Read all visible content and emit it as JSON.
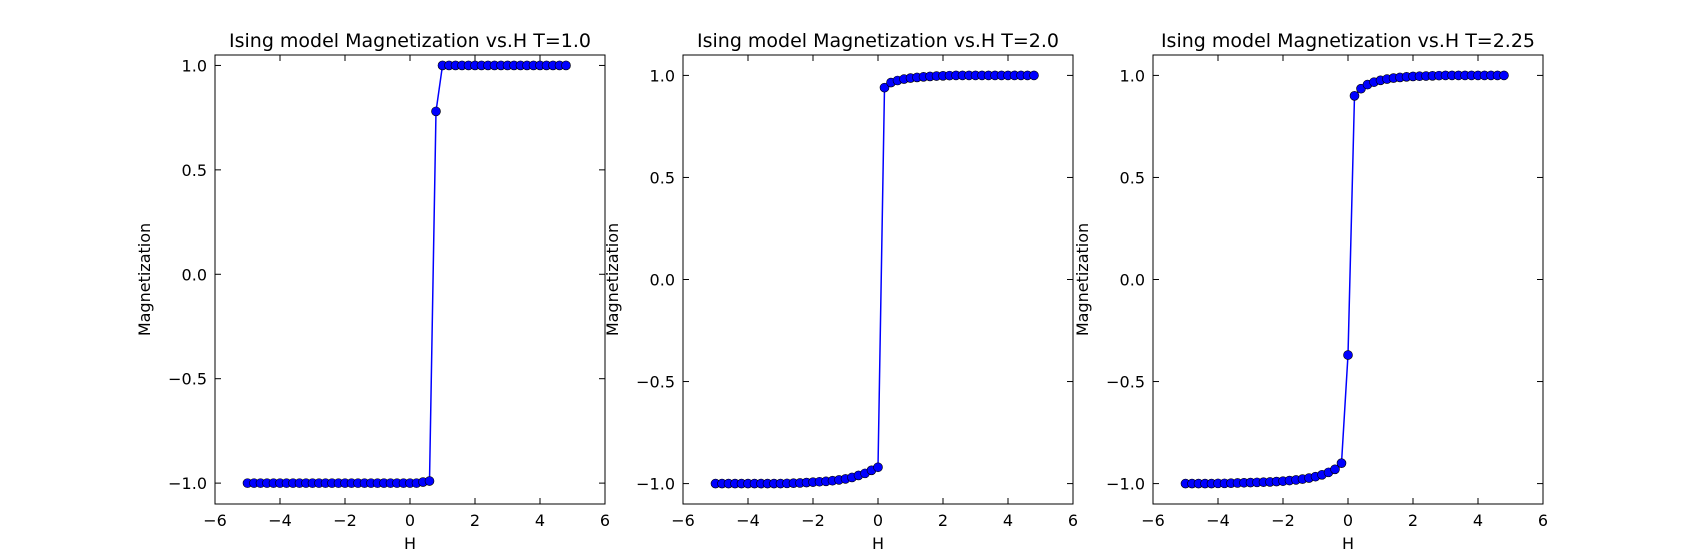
{
  "chart_data": [
    {
      "type": "line",
      "title": "Ising model Magnetization vs.H T=1.0",
      "xlabel": "H",
      "ylabel": "Magnetization",
      "xlim": [
        -6,
        6
      ],
      "ylim": [
        -1.1,
        1.05
      ],
      "xticks": [
        -6,
        -4,
        -2,
        0,
        2,
        4,
        6
      ],
      "xtick_labels": [
        "−6",
        "−4",
        "−2",
        "0",
        "2",
        "4",
        "6"
      ],
      "yticks": [
        1.0,
        0.5,
        0.0,
        -0.5,
        -1.0
      ],
      "ytick_labels": [
        "1.0",
        "0.5",
        "0.0",
        "−0.5",
        "−1.0"
      ],
      "grid": false,
      "series": [
        {
          "color": "#0000ff",
          "marker": "circle",
          "points": [
            [
              -5.0,
              -1.0
            ],
            [
              -4.8,
              -1.0
            ],
            [
              -4.6,
              -1.0
            ],
            [
              -4.4,
              -1.0
            ],
            [
              -4.2,
              -1.0
            ],
            [
              -4.0,
              -1.0
            ],
            [
              -3.8,
              -1.0
            ],
            [
              -3.6,
              -1.0
            ],
            [
              -3.4,
              -1.0
            ],
            [
              -3.2,
              -1.0
            ],
            [
              -3.0,
              -1.0
            ],
            [
              -2.8,
              -1.0
            ],
            [
              -2.6,
              -1.0
            ],
            [
              -2.4,
              -1.0
            ],
            [
              -2.2,
              -1.0
            ],
            [
              -2.0,
              -1.0
            ],
            [
              -1.8,
              -1.0
            ],
            [
              -1.6,
              -1.0
            ],
            [
              -1.4,
              -1.0
            ],
            [
              -1.2,
              -1.0
            ],
            [
              -1.0,
              -1.0
            ],
            [
              -0.8,
              -1.0
            ],
            [
              -0.6,
              -1.0
            ],
            [
              -0.4,
              -1.0
            ],
            [
              -0.2,
              -1.0
            ],
            [
              0.0,
              -1.0
            ],
            [
              0.2,
              -1.0
            ],
            [
              0.4,
              -0.995
            ],
            [
              0.6,
              -0.99
            ],
            [
              0.8,
              0.78
            ],
            [
              1.0,
              1.0
            ],
            [
              1.2,
              1.0
            ],
            [
              1.4,
              1.0
            ],
            [
              1.6,
              1.0
            ],
            [
              1.8,
              1.0
            ],
            [
              2.0,
              1.0
            ],
            [
              2.2,
              1.0
            ],
            [
              2.4,
              1.0
            ],
            [
              2.6,
              1.0
            ],
            [
              2.8,
              1.0
            ],
            [
              3.0,
              1.0
            ],
            [
              3.2,
              1.0
            ],
            [
              3.4,
              1.0
            ],
            [
              3.6,
              1.0
            ],
            [
              3.8,
              1.0
            ],
            [
              4.0,
              1.0
            ],
            [
              4.2,
              1.0
            ],
            [
              4.4,
              1.0
            ],
            [
              4.6,
              1.0
            ],
            [
              4.8,
              1.0
            ]
          ]
        }
      ]
    },
    {
      "type": "line",
      "title": "Ising model Magnetization vs.H T=2.0",
      "xlabel": "H",
      "ylabel": "Magnetization",
      "xlim": [
        -6,
        6
      ],
      "ylim": [
        -1.1,
        1.1
      ],
      "xticks": [
        -6,
        -4,
        -2,
        0,
        2,
        4,
        6
      ],
      "xtick_labels": [
        "−6",
        "−4",
        "−2",
        "0",
        "2",
        "4",
        "6"
      ],
      "yticks": [
        1.0,
        0.5,
        0.0,
        -0.5,
        -1.0
      ],
      "ytick_labels": [
        "1.0",
        "0.5",
        "0.0",
        "−0.5",
        "−1.0"
      ],
      "grid": false,
      "series": [
        {
          "color": "#0000ff",
          "marker": "circle",
          "points": [
            [
              -5.0,
              -1.0
            ],
            [
              -4.8,
              -1.0
            ],
            [
              -4.6,
              -1.0
            ],
            [
              -4.4,
              -1.0
            ],
            [
              -4.2,
              -1.0
            ],
            [
              -4.0,
              -1.0
            ],
            [
              -3.8,
              -1.0
            ],
            [
              -3.6,
              -1.0
            ],
            [
              -3.4,
              -1.0
            ],
            [
              -3.2,
              -1.0
            ],
            [
              -3.0,
              -1.0
            ],
            [
              -2.8,
              -0.999
            ],
            [
              -2.6,
              -0.998
            ],
            [
              -2.4,
              -0.997
            ],
            [
              -2.2,
              -0.995
            ],
            [
              -2.0,
              -0.993
            ],
            [
              -1.8,
              -0.991
            ],
            [
              -1.6,
              -0.989
            ],
            [
              -1.4,
              -0.986
            ],
            [
              -1.2,
              -0.982
            ],
            [
              -1.0,
              -0.977
            ],
            [
              -0.8,
              -0.97
            ],
            [
              -0.6,
              -0.96
            ],
            [
              -0.4,
              -0.95
            ],
            [
              -0.2,
              -0.935
            ],
            [
              0.0,
              -0.92
            ],
            [
              0.2,
              0.94
            ],
            [
              0.4,
              0.965
            ],
            [
              0.6,
              0.975
            ],
            [
              0.8,
              0.982
            ],
            [
              1.0,
              0.987
            ],
            [
              1.2,
              0.99
            ],
            [
              1.4,
              0.993
            ],
            [
              1.6,
              0.995
            ],
            [
              1.8,
              0.997
            ],
            [
              2.0,
              0.998
            ],
            [
              2.2,
              0.999
            ],
            [
              2.4,
              1.0
            ],
            [
              2.6,
              1.0
            ],
            [
              2.8,
              1.0
            ],
            [
              3.0,
              1.0
            ],
            [
              3.2,
              1.0
            ],
            [
              3.4,
              1.0
            ],
            [
              3.6,
              1.0
            ],
            [
              3.8,
              1.0
            ],
            [
              4.0,
              1.0
            ],
            [
              4.2,
              1.0
            ],
            [
              4.4,
              1.0
            ],
            [
              4.6,
              1.0
            ],
            [
              4.8,
              1.0
            ]
          ]
        }
      ]
    },
    {
      "type": "line",
      "title": "Ising model Magnetization vs.H T=2.25",
      "xlabel": "H",
      "ylabel": "Magnetization",
      "xlim": [
        -6,
        6
      ],
      "ylim": [
        -1.1,
        1.1
      ],
      "xticks": [
        -6,
        -4,
        -2,
        0,
        2,
        4,
        6
      ],
      "xtick_labels": [
        "−6",
        "−4",
        "−2",
        "0",
        "2",
        "4",
        "6"
      ],
      "yticks": [
        1.0,
        0.5,
        0.0,
        -0.5,
        -1.0
      ],
      "ytick_labels": [
        "1.0",
        "0.5",
        "0.0",
        "−0.5",
        "−1.0"
      ],
      "grid": false,
      "series": [
        {
          "color": "#0000ff",
          "marker": "circle",
          "points": [
            [
              -5.0,
              -1.0
            ],
            [
              -4.8,
              -1.0
            ],
            [
              -4.6,
              -1.0
            ],
            [
              -4.4,
              -1.0
            ],
            [
              -4.2,
              -1.0
            ],
            [
              -4.0,
              -0.999
            ],
            [
              -3.8,
              -0.999
            ],
            [
              -3.6,
              -0.998
            ],
            [
              -3.4,
              -0.997
            ],
            [
              -3.2,
              -0.996
            ],
            [
              -3.0,
              -0.995
            ],
            [
              -2.8,
              -0.994
            ],
            [
              -2.6,
              -0.993
            ],
            [
              -2.4,
              -0.992
            ],
            [
              -2.2,
              -0.99
            ],
            [
              -2.0,
              -0.988
            ],
            [
              -1.8,
              -0.985
            ],
            [
              -1.6,
              -0.982
            ],
            [
              -1.4,
              -0.978
            ],
            [
              -1.2,
              -0.973
            ],
            [
              -1.0,
              -0.966
            ],
            [
              -0.8,
              -0.957
            ],
            [
              -0.6,
              -0.945
            ],
            [
              -0.4,
              -0.93
            ],
            [
              -0.2,
              -0.9
            ],
            [
              0.0,
              -0.37
            ],
            [
              0.2,
              0.9
            ],
            [
              0.4,
              0.935
            ],
            [
              0.6,
              0.955
            ],
            [
              0.8,
              0.967
            ],
            [
              1.0,
              0.976
            ],
            [
              1.2,
              0.982
            ],
            [
              1.4,
              0.987
            ],
            [
              1.6,
              0.99
            ],
            [
              1.8,
              0.993
            ],
            [
              2.0,
              0.995
            ],
            [
              2.2,
              0.996
            ],
            [
              2.4,
              0.997
            ],
            [
              2.6,
              0.998
            ],
            [
              2.8,
              0.999
            ],
            [
              3.0,
              1.0
            ],
            [
              3.2,
              1.0
            ],
            [
              3.4,
              1.0
            ],
            [
              3.6,
              1.0
            ],
            [
              3.8,
              1.0
            ],
            [
              4.0,
              1.0
            ],
            [
              4.2,
              1.0
            ],
            [
              4.4,
              1.0
            ],
            [
              4.6,
              1.0
            ],
            [
              4.8,
              1.0
            ]
          ]
        }
      ]
    }
  ]
}
